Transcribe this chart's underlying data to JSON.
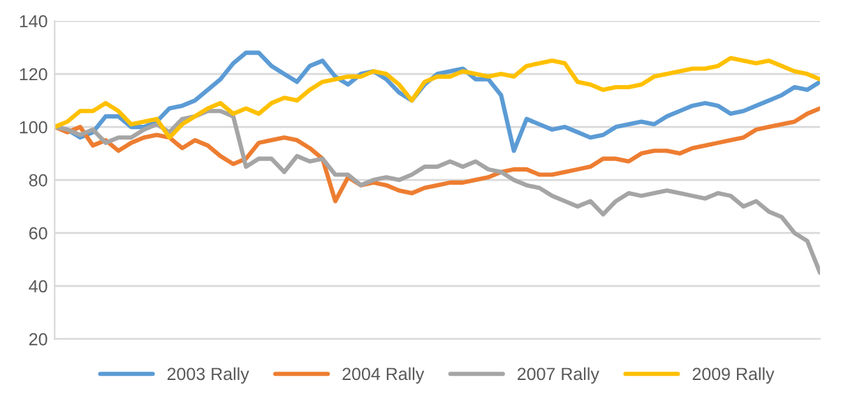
{
  "chart_data": {
    "type": "line",
    "categories": [
      null,
      null,
      null,
      null,
      null,
      null,
      null,
      null,
      null,
      null,
      null,
      null,
      null,
      null,
      null,
      null,
      null,
      null,
      null,
      null,
      null,
      null,
      null,
      null,
      null,
      null,
      null,
      null,
      null,
      null,
      null,
      null,
      null,
      null,
      null,
      null,
      null,
      null,
      null,
      null,
      null,
      null,
      null,
      null,
      null,
      null,
      null,
      null,
      null,
      null,
      null,
      null,
      null,
      null,
      null,
      null,
      null,
      null,
      null,
      null,
      null
    ],
    "series": [
      {
        "name": "2003 Rally",
        "color": "#5b9bd5",
        "values": [
          100,
          99,
          96,
          98,
          104,
          104,
          100,
          100,
          102,
          107,
          108,
          110,
          114,
          118,
          124,
          128,
          128,
          123,
          120,
          117,
          123,
          125,
          119,
          116,
          120,
          121,
          118,
          113,
          110,
          116,
          120,
          121,
          122,
          118,
          118,
          112,
          91,
          103,
          101,
          99,
          100,
          98,
          96,
          97,
          100,
          101,
          102,
          101,
          104,
          106,
          108,
          109,
          108,
          105,
          106,
          108,
          110,
          112,
          115,
          114,
          117
        ]
      },
      {
        "name": "2004 Rally",
        "color": "#ed7d31",
        "values": [
          100,
          98,
          100,
          93,
          95,
          91,
          94,
          96,
          97,
          96,
          92,
          95,
          93,
          89,
          86,
          88,
          94,
          95,
          96,
          95,
          92,
          88,
          72,
          81,
          78,
          79,
          78,
          76,
          75,
          77,
          78,
          79,
          79,
          80,
          81,
          83,
          84,
          84,
          82,
          82,
          83,
          84,
          85,
          88,
          88,
          87,
          90,
          91,
          91,
          90,
          92,
          93,
          94,
          95,
          96,
          99,
          100,
          101,
          102,
          105,
          107
        ]
      },
      {
        "name": "2007 Rally",
        "color": "#a5a5a5",
        "values": [
          100,
          99,
          97,
          99,
          94,
          96,
          96,
          99,
          101,
          98,
          103,
          104,
          106,
          106,
          104,
          85,
          88,
          88,
          83,
          89,
          87,
          88,
          82,
          82,
          78,
          80,
          81,
          80,
          82,
          85,
          85,
          87,
          85,
          87,
          84,
          83,
          80,
          78,
          77,
          74,
          72,
          70,
          72,
          67,
          72,
          75,
          74,
          75,
          76,
          75,
          74,
          73,
          75,
          74,
          70,
          72,
          68,
          66,
          60,
          57,
          45
        ]
      },
      {
        "name": "2009 Rally",
        "color": "#ffc000",
        "values": [
          100,
          102,
          106,
          106,
          109,
          106,
          101,
          102,
          103,
          96,
          101,
          104,
          107,
          109,
          105,
          107,
          105,
          109,
          111,
          110,
          114,
          117,
          118,
          119,
          119,
          121,
          120,
          116,
          110,
          117,
          119,
          119,
          121,
          120,
          119,
          120,
          119,
          123,
          124,
          125,
          124,
          117,
          116,
          114,
          115,
          115,
          116,
          119,
          120,
          121,
          122,
          122,
          123,
          126,
          125,
          124,
          125,
          123,
          121,
          120,
          118
        ]
      }
    ],
    "ylim": [
      20,
      140
    ],
    "yticks": [
      20,
      40,
      60,
      80,
      100,
      120,
      140
    ],
    "grid": "y",
    "legend": "bottom",
    "tick_labels": "y",
    "line_style": "solid",
    "marker": "none"
  }
}
